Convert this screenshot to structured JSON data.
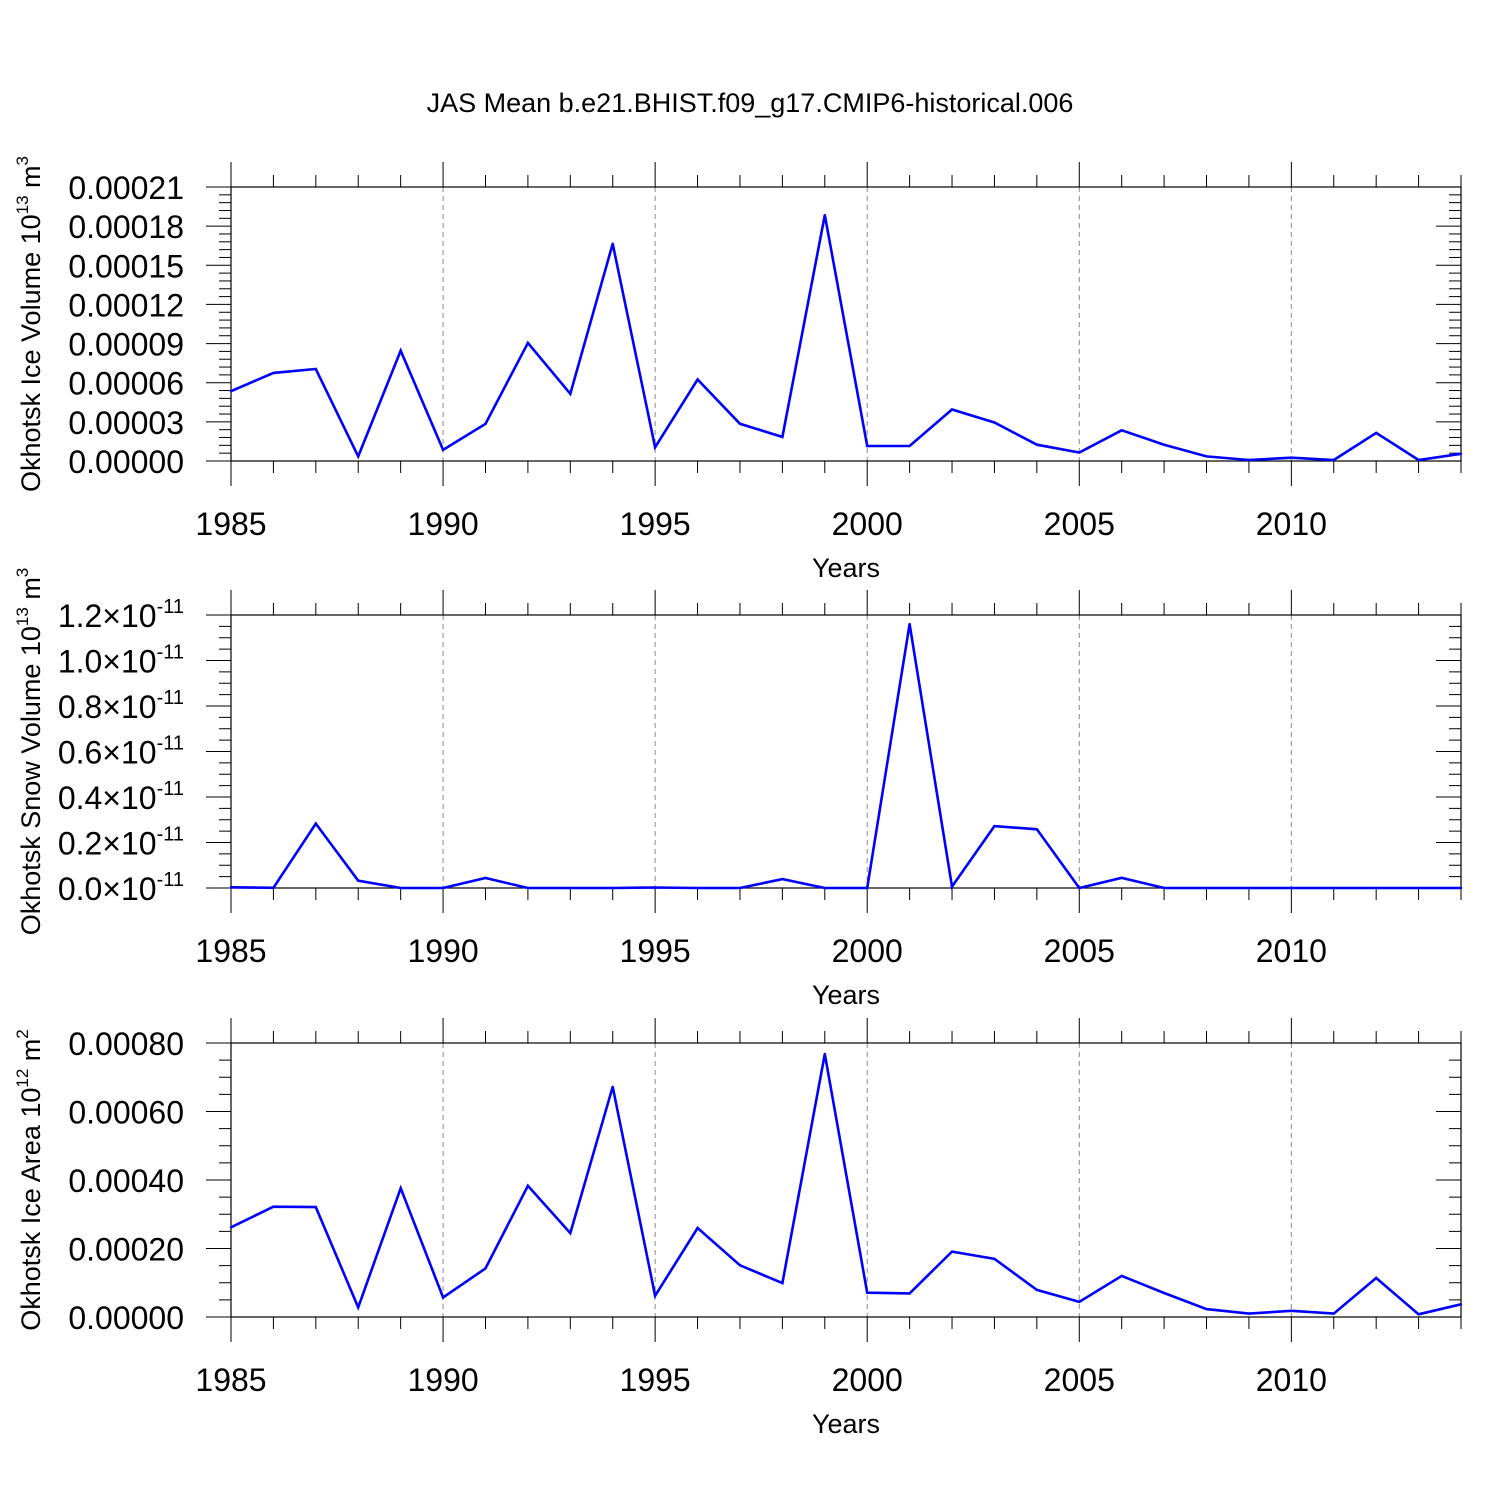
{
  "title": "JAS Mean b.e21.BHIST.f09_g17.CMIP6-historical.006",
  "colors": {
    "series": "#0000ff",
    "axis": "#000000",
    "grid": "#888888"
  },
  "chart_data": [
    {
      "type": "line",
      "ylabel_text": "Okhotsk Ice Volume 10",
      "ylabel_exp": "13",
      "ylabel_unit": " m",
      "ylabel_unit_exp": "3",
      "xlabel": "Years",
      "x": [
        1985,
        1986,
        1987,
        1988,
        1989,
        1990,
        1991,
        1992,
        1993,
        1994,
        1995,
        1996,
        1997,
        1998,
        1999,
        2000,
        2001,
        2002,
        2003,
        2004,
        2005,
        2006,
        2007,
        2008,
        2009,
        2010,
        2011,
        2012,
        2013,
        2014
      ],
      "values": [
        5.35e-05,
        6.75e-05,
        7.05e-05,
        3.5e-06,
        8.45e-05,
        8.5e-06,
        2.85e-05,
        9.05e-05,
        5.15e-05,
        0.0001665,
        1.05e-05,
        6.25e-05,
        2.85e-05,
        1.85e-05,
        0.0001885,
        1.15e-05,
        1.15e-05,
        3.95e-05,
        2.95e-05,
        1.25e-05,
        6.5e-06,
        2.35e-05,
        1.25e-05,
        3.5e-06,
        8e-07,
        2.5e-06,
        8e-07,
        2.15e-05,
        8e-07,
        5.5e-06
      ],
      "xlim": [
        1985,
        2014
      ],
      "ylim": [
        0,
        0.00021
      ],
      "xticks": [
        "1985",
        "1990",
        "1995",
        "2000",
        "2005",
        "2010"
      ],
      "yticks": [
        "0.00000",
        "0.00003",
        "0.00006",
        "0.00009",
        "0.00012",
        "0.00015",
        "0.00018",
        "0.00021"
      ],
      "ytick_exp": "",
      "grid": "dashed vertical at major x ticks"
    },
    {
      "type": "line",
      "ylabel_text": "Okhotsk Snow Volume 10",
      "ylabel_exp": "13",
      "ylabel_unit": " m",
      "ylabel_unit_exp": "3",
      "xlabel": "Years",
      "x": [
        1985,
        1986,
        1987,
        1988,
        1989,
        1990,
        1991,
        1992,
        1993,
        1994,
        1995,
        1996,
        1997,
        1998,
        1999,
        2000,
        2001,
        2002,
        2003,
        2004,
        2005,
        2006,
        2007,
        2008,
        2009,
        2010,
        2011,
        2012,
        2013,
        2014
      ],
      "values": [
        3e-14,
        1e-14,
        2.83e-12,
        3.2e-13,
        0,
        0,
        4.4e-13,
        0,
        0,
        0,
        2e-14,
        0,
        0,
        3.9e-13,
        0,
        0,
        1.16e-11,
        6e-14,
        2.72e-12,
        2.58e-12,
        0,
        4.5e-13,
        0,
        0,
        0,
        0,
        0,
        0,
        0,
        0
      ],
      "xlim": [
        1985,
        2014
      ],
      "ylim": [
        0,
        1.2e-11
      ],
      "xticks": [
        "1985",
        "1990",
        "1995",
        "2000",
        "2005",
        "2010"
      ],
      "yticks": [
        "0.0×10",
        "0.2×10",
        "0.4×10",
        "0.6×10",
        "0.8×10",
        "1.0×10",
        "1.2×10"
      ],
      "ytick_exp": "-11",
      "grid": "dashed vertical at major x ticks"
    },
    {
      "type": "line",
      "ylabel_text": "Okhotsk Ice Area 10",
      "ylabel_exp": "12",
      "ylabel_unit": " m",
      "ylabel_unit_exp": "2",
      "xlabel": "Years",
      "x": [
        1985,
        1986,
        1987,
        1988,
        1989,
        1990,
        1991,
        1992,
        1993,
        1994,
        1995,
        1996,
        1997,
        1998,
        1999,
        2000,
        2001,
        2002,
        2003,
        2004,
        2005,
        2006,
        2007,
        2008,
        2009,
        2010,
        2011,
        2012,
        2013,
        2014
      ],
      "values": [
        0.000262,
        0.000322,
        0.000321,
        2.8e-05,
        0.000376,
        5.7e-05,
        0.000142,
        0.000383,
        0.000245,
        0.000672,
        6.2e-05,
        0.00026,
        0.000151,
        9.9e-05,
        0.000768,
        7.1e-05,
        6.9e-05,
        0.000191,
        0.00017,
        7.9e-05,
        4.4e-05,
        0.00012,
        7e-05,
        2.3e-05,
        1e-05,
        1.8e-05,
        1e-05,
        0.000114,
        8e-06,
        3.7e-05
      ],
      "xlim": [
        1985,
        2014
      ],
      "ylim": [
        0,
        0.0008
      ],
      "xticks": [
        "1985",
        "1990",
        "1995",
        "2000",
        "2005",
        "2010"
      ],
      "yticks": [
        "0.00000",
        "0.00020",
        "0.00040",
        "0.00060",
        "0.00080"
      ],
      "ytick_exp": "",
      "grid": "dashed vertical at major x ticks"
    }
  ]
}
